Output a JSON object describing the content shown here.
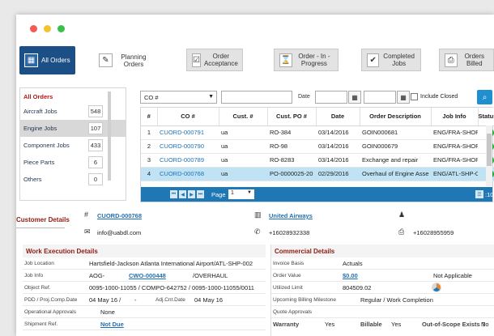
{
  "toolbar": {
    "items": [
      {
        "label": "All Orders",
        "icon": "grid-icon"
      },
      {
        "label": "Planning Orders",
        "icon": "edit-icon"
      },
      {
        "label": "Order Acceptance",
        "icon": "checkbox-icon"
      },
      {
        "label": "Order - In - Progress",
        "icon": "hourglass-icon"
      },
      {
        "label": "Completed Jobs",
        "icon": "check-icon"
      },
      {
        "label": "Orders Billed",
        "icon": "printer-icon"
      }
    ]
  },
  "sidebar": {
    "title": "All Orders",
    "items": [
      {
        "label": "Aircraft Jobs",
        "count": "548"
      },
      {
        "label": "Engine Jobs",
        "count": "107"
      },
      {
        "label": "Component Jobs",
        "count": "433"
      },
      {
        "label": "Piece Parts",
        "count": "6"
      },
      {
        "label": "Others",
        "count": "0"
      }
    ]
  },
  "filter": {
    "field_value": "CO #",
    "date_label": "Date",
    "include_closed_label": "Include Closed"
  },
  "grid": {
    "columns": [
      "#",
      "CO #",
      "Cust. #",
      "Cust. PO #",
      "Date",
      "Order Description",
      "Job Info",
      "Status"
    ],
    "rows": [
      {
        "n": "1",
        "co": "CUORD-000791",
        "cust": "ua",
        "po": "RO-384",
        "date": "03/14/2016",
        "desc": "GOIN000681",
        "job": "ENG/FRA-SHOP"
      },
      {
        "n": "2",
        "co": "CUORD-000790",
        "cust": "ua",
        "po": "RO-98",
        "date": "03/14/2016",
        "desc": "GOIN000679",
        "job": "ENG/FRA-SHOP"
      },
      {
        "n": "3",
        "co": "CUORD-000789",
        "cust": "ua",
        "po": "RO-8283",
        "date": "03/14/2016",
        "desc": "Exchange and repair",
        "job": "ENG/FRA-SHOP"
      },
      {
        "n": "4",
        "co": "CUORD-000768",
        "cust": "ua",
        "po": "PO-0000025-20",
        "date": "02/29/2016",
        "desc": "Overhaul of Engine Asse",
        "job": "ENG/ATL-SHP-0"
      }
    ],
    "page_label": "Page",
    "page_value": "1",
    "total": ":107"
  },
  "customer": {
    "title": "Customer Details",
    "order_no": "CUORD-000768",
    "email": "info@uabdl.com",
    "company": "United Airways",
    "phone": "+16028932338",
    "fax": "+16028955959"
  },
  "work": {
    "title": "Work Execution Details",
    "job_location_label": "Job Location",
    "job_location": "Hartsfield-Jackson Atlanta International Airport/ATL-SHP-002",
    "job_info_label": "Job Info",
    "job_info_a": "AOG-",
    "job_info_link": "CWO-000448",
    "job_info_b": "/OVERHAUL",
    "object_ref_label": "Object Ref.",
    "object_ref": "0095-1000-11055 / COMPO-642752 / 0095-1000-11055/0011",
    "pdd_label": "PDD / Proj.Comp.Date",
    "pdd": "04 May 16 /",
    "pdd_dash": "-",
    "adj_label": "Adj.Cnt.Date",
    "adj": "04 May 16",
    "op_label": "Operational Approvals",
    "op": "None",
    "ship_label": "Shipment Ref.",
    "ship": "Not Due"
  },
  "commercial": {
    "title": "Commercial Details",
    "invoice_label": "Invoice Basis",
    "invoice": "Actuals",
    "order_value_label": "Order Value",
    "order_value": "$0.00",
    "not_applicable": "Not Applicable",
    "utilized_label": "Utilized Limit",
    "utilized": "804509.02",
    "billing_label": "Upcoming Billing Milestone",
    "billing": "Regular / Work Completion",
    "quote_label": "Quote Approvals",
    "warranty_label": "Warranty",
    "warranty": "Yes",
    "billable_label": "Billable",
    "billable": "Yes",
    "oos_label": "Out-of-Scope Exists ?",
    "oos": "No"
  },
  "colors": {
    "accent_dark": "#1c4f86",
    "grid_blue": "#1f77b4",
    "section_title": "#8e1a12",
    "link": "#1e6fb5",
    "status_ok": "#22a033"
  }
}
